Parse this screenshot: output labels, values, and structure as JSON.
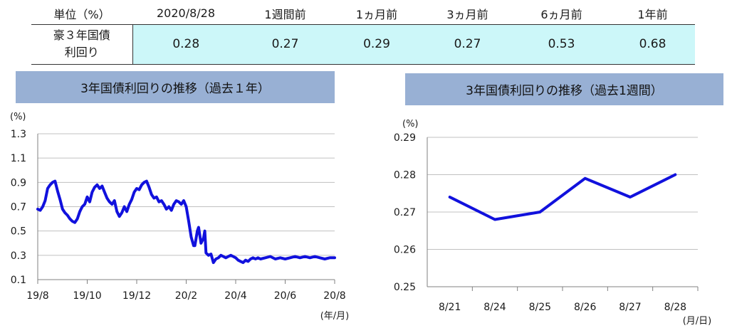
{
  "table": {
    "header": [
      "単位（%）",
      "2020/8/28",
      "1週間前",
      "1ヵ月前",
      "3ヵ月前",
      "6ヵ月前",
      "1年前"
    ],
    "row_label_line1": "豪３年国債",
    "row_label_line2": "利回り",
    "values": [
      "0.28",
      "0.27",
      "0.29",
      "0.27",
      "0.53",
      "0.68"
    ]
  },
  "chart_data": [
    {
      "type": "line",
      "title": "3年国債利回りの推移（過去１年）",
      "ylabel": "(%)",
      "xlabel": "(年/月)",
      "ylim": [
        0.1,
        1.3
      ],
      "yticks": [
        1.3,
        1.1,
        0.9,
        0.7,
        0.5,
        0.3,
        0.1
      ],
      "ytick_labels": [
        "1.3",
        "1.1",
        "0.9",
        "0.7",
        "0.5",
        "0.3",
        "0.1"
      ],
      "xticks": [
        0,
        2,
        4,
        6,
        8,
        10,
        12
      ],
      "xtick_labels": [
        "19/8",
        "19/10",
        "19/12",
        "20/2",
        "20/4",
        "20/6",
        "20/8"
      ],
      "grid": true,
      "color": "#1111dd",
      "series": [
        {
          "x": [
            0.0,
            0.1,
            0.2,
            0.3,
            0.4,
            0.5,
            0.6,
            0.7,
            0.8,
            0.9,
            1.0,
            1.1,
            1.2,
            1.3,
            1.4,
            1.5,
            1.6,
            1.7,
            1.8,
            1.9,
            2.0,
            2.1,
            2.2,
            2.3,
            2.4,
            2.5,
            2.6,
            2.7,
            2.8,
            2.9,
            3.0,
            3.1,
            3.2,
            3.3,
            3.4,
            3.5,
            3.6,
            3.7,
            3.8,
            3.9,
            4.0,
            4.1,
            4.2,
            4.3,
            4.4,
            4.5,
            4.6,
            4.7,
            4.8,
            4.9,
            5.0,
            5.1,
            5.2,
            5.3,
            5.4,
            5.5,
            5.6,
            5.7,
            5.8,
            5.9,
            6.0,
            6.1,
            6.2,
            6.3,
            6.35,
            6.45,
            6.5,
            6.6,
            6.7,
            6.75,
            6.8,
            6.9,
            7.0,
            7.1,
            7.2,
            7.3,
            7.4,
            7.5,
            7.6,
            7.7,
            7.8,
            7.9,
            8.0,
            8.1,
            8.2,
            8.3,
            8.4,
            8.5,
            8.6,
            8.7,
            8.8,
            8.9,
            9.0,
            9.2,
            9.4,
            9.6,
            9.8,
            10.0,
            10.2,
            10.4,
            10.6,
            10.8,
            11.0,
            11.2,
            11.4,
            11.6,
            11.8,
            12.0
          ],
          "values": [
            0.68,
            0.67,
            0.7,
            0.75,
            0.85,
            0.88,
            0.9,
            0.91,
            0.83,
            0.76,
            0.68,
            0.65,
            0.63,
            0.6,
            0.58,
            0.57,
            0.6,
            0.66,
            0.7,
            0.72,
            0.78,
            0.74,
            0.82,
            0.86,
            0.88,
            0.85,
            0.87,
            0.82,
            0.77,
            0.74,
            0.72,
            0.75,
            0.66,
            0.62,
            0.65,
            0.7,
            0.66,
            0.72,
            0.76,
            0.82,
            0.85,
            0.84,
            0.88,
            0.9,
            0.91,
            0.86,
            0.8,
            0.77,
            0.78,
            0.74,
            0.75,
            0.72,
            0.68,
            0.7,
            0.67,
            0.72,
            0.75,
            0.74,
            0.72,
            0.75,
            0.7,
            0.58,
            0.45,
            0.38,
            0.38,
            0.5,
            0.53,
            0.4,
            0.44,
            0.5,
            0.32,
            0.3,
            0.31,
            0.24,
            0.27,
            0.28,
            0.3,
            0.29,
            0.28,
            0.29,
            0.3,
            0.29,
            0.28,
            0.26,
            0.25,
            0.24,
            0.26,
            0.25,
            0.27,
            0.28,
            0.27,
            0.28,
            0.27,
            0.28,
            0.29,
            0.27,
            0.28,
            0.27,
            0.28,
            0.29,
            0.28,
            0.29,
            0.28,
            0.29,
            0.28,
            0.27,
            0.28,
            0.28
          ]
        }
      ]
    },
    {
      "type": "line",
      "title": "3年国債利回りの推移（過去1週間）",
      "ylabel": "(%)",
      "xlabel": "(月/日)",
      "ylim": [
        0.25,
        0.29
      ],
      "yticks": [
        0.29,
        0.28,
        0.27,
        0.26,
        0.25
      ],
      "ytick_labels": [
        "0.29",
        "0.28",
        "0.27",
        "0.26",
        "0.25"
      ],
      "categories": [
        "8/21",
        "8/24",
        "8/25",
        "8/26",
        "8/27",
        "8/28"
      ],
      "grid": true,
      "color": "#1111dd",
      "series": [
        {
          "values": [
            0.274,
            0.268,
            0.27,
            0.279,
            0.274,
            0.28
          ]
        }
      ]
    }
  ]
}
